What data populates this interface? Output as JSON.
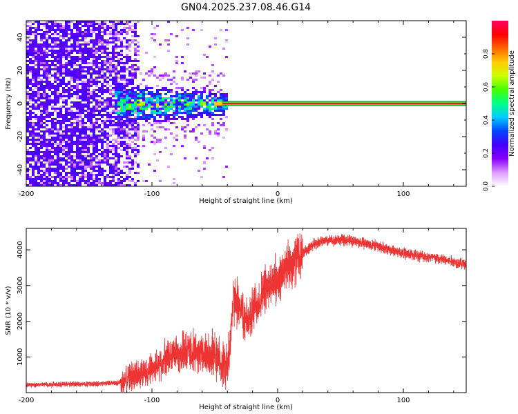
{
  "title": "GN04.2025.237.08.46.G14",
  "chart_data": [
    {
      "type": "heatmap",
      "title": "",
      "xlabel": "Height of straight line (km)",
      "ylabel": "Frequency (Hz)",
      "xlim": [
        -200,
        150
      ],
      "ylim": [
        -50,
        50
      ],
      "xticks": [
        -200,
        -100,
        0,
        100
      ],
      "yticks": [
        -40,
        -20,
        0,
        20,
        40
      ],
      "signal_line": {
        "frequency": 0,
        "x_start": -45,
        "x_end": 150,
        "amplitude": 0.9
      },
      "noise_region": {
        "x_start": -200,
        "x_end": -110,
        "amplitude_range": [
          0.2,
          0.3
        ]
      },
      "concentrated_region": {
        "x_start": -130,
        "x_end": -40,
        "frequency_range": [
          -10,
          10
        ],
        "amplitude_range": [
          0.2,
          0.6
        ]
      },
      "colorbar": {
        "label": "Normalized spectral amplitude",
        "range": [
          0,
          1
        ],
        "ticks": [
          "0.0",
          "0.2",
          "0.4",
          "0.6",
          "0.8"
        ],
        "colors": [
          "#ffffff",
          "#dd99ff",
          "#8800ff",
          "#4400ff",
          "#0044ff",
          "#00ccff",
          "#00ff88",
          "#44ff00",
          "#ccff00",
          "#ffcc00",
          "#ff6600",
          "#ff0000",
          "#ff0066"
        ]
      }
    },
    {
      "type": "line",
      "title": "",
      "xlabel": "Height of straight line (km)",
      "ylabel": "SNR (10 * v/v)",
      "xlim": [
        -200,
        150
      ],
      "ylim": [
        0,
        4600
      ],
      "xticks": [
        -200,
        -100,
        0,
        100
      ],
      "yticks": [
        1000,
        2000,
        3000,
        4000
      ],
      "line_color": "#ee3333",
      "series": [
        {
          "name": "SNR",
          "x": [
            -200,
            -150,
            -125,
            -115,
            -100,
            -90,
            -80,
            -70,
            -60,
            -50,
            -45,
            -40,
            -35,
            -30,
            -25,
            -20,
            -10,
            0,
            10,
            20,
            30,
            40,
            50,
            60,
            80,
            100,
            120,
            150
          ],
          "y": [
            220,
            240,
            280,
            480,
            700,
            950,
            1100,
            1150,
            1100,
            1050,
            900,
            700,
            2600,
            2500,
            1900,
            2300,
            2900,
            3200,
            3600,
            3900,
            4200,
            4250,
            4280,
            4250,
            4100,
            3900,
            3800,
            3600
          ]
        }
      ]
    }
  ]
}
